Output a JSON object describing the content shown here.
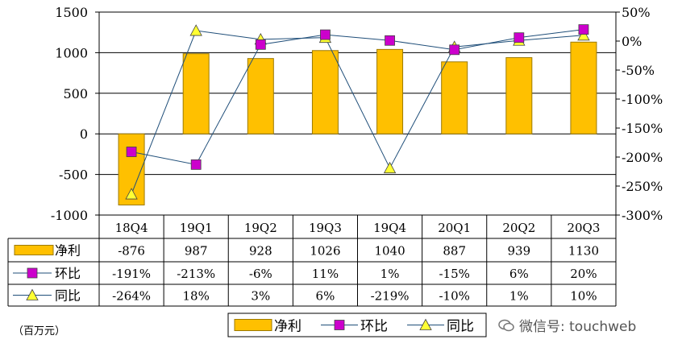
{
  "chart_data": {
    "type": "bar+line",
    "categories": [
      "18Q4",
      "19Q1",
      "19Q2",
      "19Q3",
      "19Q4",
      "20Q1",
      "20Q2",
      "20Q3"
    ],
    "series": [
      {
        "name": "净利",
        "type": "bar",
        "axis": "left",
        "values": [
          -876,
          987,
          928,
          1026,
          1040,
          887,
          939,
          1130
        ],
        "labels": [
          "-876",
          "987",
          "928",
          "1026",
          "1040",
          "887",
          "939",
          "1130"
        ]
      },
      {
        "name": "环比",
        "type": "line",
        "axis": "right",
        "marker": "square",
        "values": [
          -191,
          -213,
          -6,
          11,
          1,
          -15,
          6,
          20
        ],
        "labels": [
          "-191%",
          "-213%",
          "-6%",
          "11%",
          "1%",
          "-15%",
          "6%",
          "20%"
        ]
      },
      {
        "name": "同比",
        "type": "line",
        "axis": "right",
        "marker": "triangle",
        "values": [
          -264,
          18,
          3,
          6,
          -219,
          -10,
          1,
          10
        ],
        "labels": [
          "-264%",
          "18%",
          "3%",
          "6%",
          "-219%",
          "-10%",
          "1%",
          "10%"
        ]
      }
    ],
    "left_axis": {
      "ylim": [
        -1000,
        1500
      ],
      "ticks": [
        -1000,
        -500,
        0,
        500,
        1000,
        1500
      ],
      "tick_labels": [
        "-1000",
        "-500",
        "0",
        "500",
        "1000",
        "1500"
      ]
    },
    "right_axis": {
      "ylim": [
        -300,
        50
      ],
      "ticks": [
        -300,
        -250,
        -200,
        -150,
        -100,
        -50,
        0,
        50
      ],
      "tick_labels": [
        "-300%",
        "-250%",
        "-200%",
        "-150%",
        "-100%",
        "-50%",
        "0%",
        "50%"
      ]
    },
    "grid": true,
    "legend": {
      "position": "bottom-center",
      "entries": [
        "净利",
        "环比",
        "同比"
      ]
    },
    "data_table": true,
    "colors": {
      "bar": "#FFC000",
      "bar_edge": "#9C7A00",
      "mom": "#CC00CC",
      "yoy": "#FFFF33",
      "line": "#1F4E79"
    }
  },
  "unit_label": "（百万元）",
  "watermark": "微信号: touchweb"
}
